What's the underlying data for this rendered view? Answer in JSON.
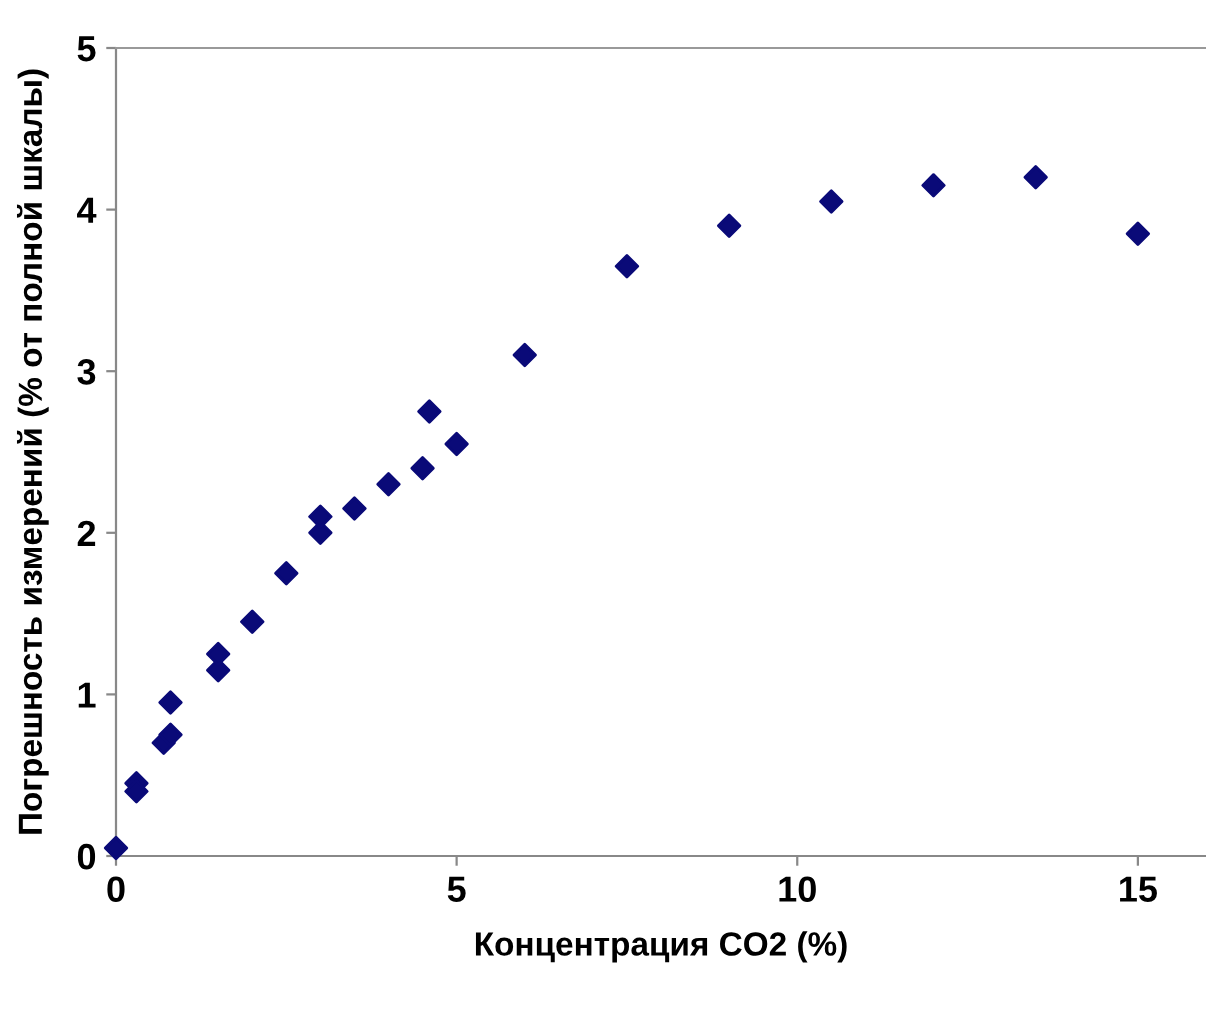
{
  "chart_data": {
    "type": "scatter",
    "xlabel": "Концентрация CO2 (%)",
    "ylabel": "Погрешность измерений (% от полной шкалы)",
    "x": [
      0,
      0.3,
      0.3,
      0.7,
      0.8,
      0.8,
      1.5,
      1.5,
      2,
      2.5,
      3,
      3,
      3.5,
      4,
      4.5,
      4.6,
      5,
      6,
      7.5,
      9,
      10.5,
      12,
      13.5,
      15
    ],
    "series": [
      {
        "color": "#0a0a78",
        "values": [
          0.05,
          0.45,
          0.4,
          0.7,
          0.75,
          0.95,
          1.15,
          1.25,
          1.45,
          1.75,
          2.0,
          2.1,
          2.15,
          2.3,
          2.4,
          2.75,
          2.55,
          3.1,
          3.65,
          3.9,
          4.05,
          4.15,
          4.2,
          3.85
        ]
      }
    ],
    "marker": "diamond",
    "xlim": [
      0,
      16
    ],
    "ylim": [
      0,
      5
    ],
    "xticks": [
      0,
      5,
      10,
      15
    ],
    "yticks": [
      0,
      1,
      2,
      3,
      4,
      5
    ],
    "grid": false
  }
}
